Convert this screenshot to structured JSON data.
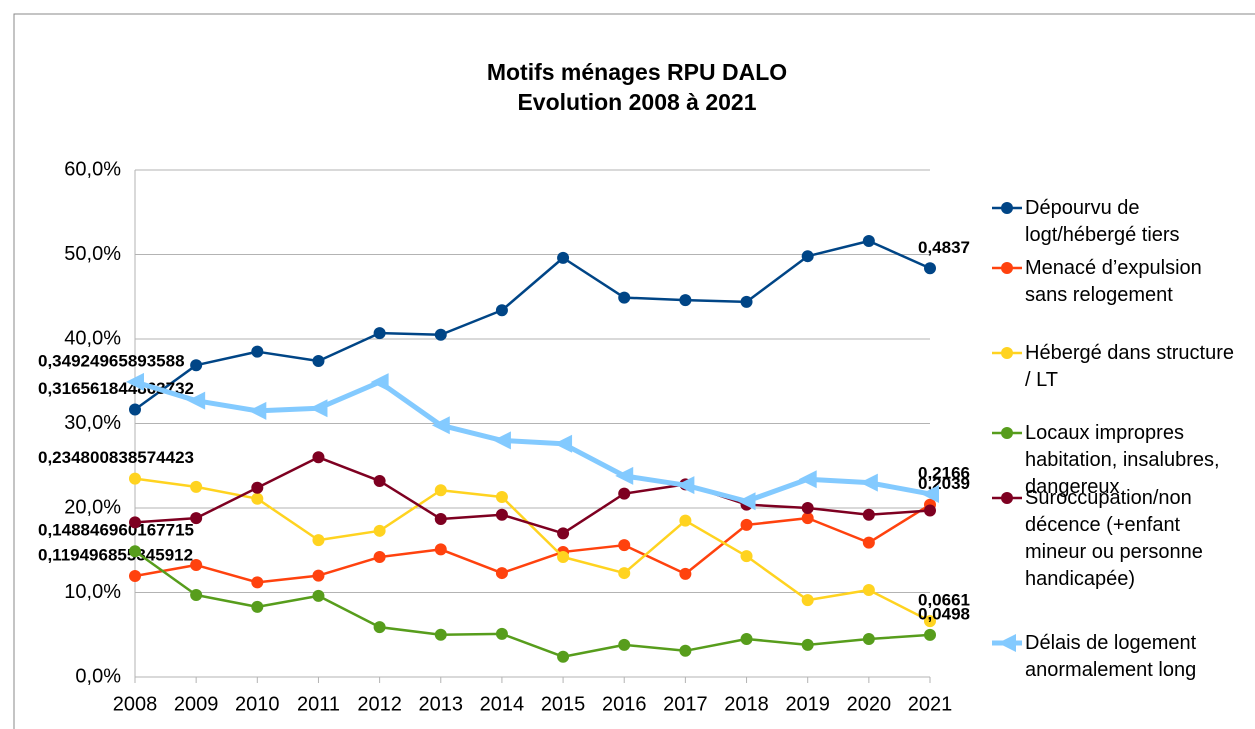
{
  "chart_data": {
    "type": "line",
    "title": "Motifs ménages RPU DALO",
    "subtitle": "Evolution 2008 à 2021",
    "categories": [
      "2008",
      "2009",
      "2010",
      "2011",
      "2012",
      "2013",
      "2014",
      "2015",
      "2016",
      "2017",
      "2018",
      "2019",
      "2020",
      "2021"
    ],
    "ylim": [
      0,
      0.6
    ],
    "yticks": [
      {
        "value": 0,
        "label": "0,0%"
      },
      {
        "value": 0.1,
        "label": "10,0%"
      },
      {
        "value": 0.2,
        "label": "20,0%"
      },
      {
        "value": 0.3,
        "label": "30,0%"
      },
      {
        "value": 0.4,
        "label": "40,0%"
      },
      {
        "value": 0.5,
        "label": "50,0%"
      },
      {
        "value": 0.6,
        "label": "60,0%"
      }
    ],
    "grid": true,
    "legend": "right",
    "series": [
      {
        "name": "Dépourvu de logt/hébergé tiers",
        "color": "#004586",
        "marker": "circle",
        "line_width": 2.5,
        "values": [
          0.316561844863732,
          0.369,
          0.385,
          0.374,
          0.407,
          0.405,
          0.434,
          0.496,
          0.449,
          0.446,
          0.444,
          0.498,
          0.516,
          0.4837
        ],
        "value_labels": [
          "0,316561844863732",
          null,
          null,
          null,
          null,
          null,
          null,
          null,
          null,
          null,
          null,
          null,
          null,
          "0,4837"
        ]
      },
      {
        "name": "Menacé d’expulsion sans relogement",
        "color": "#ff420e",
        "marker": "circle",
        "line_width": 2.5,
        "values": [
          0.119496855345912,
          0.1325,
          0.112,
          0.12,
          0.142,
          0.151,
          0.123,
          0.148,
          0.156,
          0.122,
          0.18,
          0.188,
          0.159,
          0.2039
        ],
        "value_labels": [
          "0,119496855345912",
          null,
          null,
          null,
          null,
          null,
          null,
          null,
          null,
          null,
          null,
          null,
          null,
          "0,2039"
        ]
      },
      {
        "name": "Hébergé dans structure / LT",
        "color": "#ffd320",
        "marker": "circle",
        "line_width": 2.5,
        "values": [
          0.234800838574423,
          0.225,
          0.211,
          0.162,
          0.173,
          0.221,
          0.213,
          0.142,
          0.123,
          0.185,
          0.143,
          0.091,
          0.103,
          0.0661
        ],
        "value_labels": [
          "0,234800838574423",
          null,
          null,
          null,
          null,
          null,
          null,
          null,
          null,
          null,
          null,
          null,
          null,
          "0,0661"
        ]
      },
      {
        "name": "Locaux impropres habitation, insalubres, dangereux",
        "color": "#579d1c",
        "marker": "circle",
        "line_width": 2.5,
        "values": [
          0.148846960167715,
          0.097,
          0.083,
          0.096,
          0.059,
          0.05,
          0.051,
          0.024,
          0.038,
          0.031,
          0.045,
          0.038,
          0.045,
          0.0498
        ],
        "value_labels": [
          "0,148846960167715",
          null,
          null,
          null,
          null,
          null,
          null,
          null,
          null,
          null,
          null,
          null,
          null,
          "0,0498"
        ]
      },
      {
        "name": "Suroccupation/non décence (+enfant mineur ou personne handicapée)",
        "color": "#7e0021",
        "marker": "circle",
        "line_width": 2.5,
        "values": [
          0.183,
          0.188,
          0.224,
          0.26,
          0.232,
          0.187,
          0.192,
          0.17,
          0.217,
          0.228,
          0.204,
          0.2,
          0.192,
          0.197
        ]
      },
      {
        "name": "Délais de logement anormalement long",
        "color": "#83caff",
        "marker": "triangle",
        "line_width": 5,
        "values": [
          0.34924965893588,
          0.327,
          0.315,
          0.318,
          0.349,
          0.298,
          0.28,
          0.276,
          0.238,
          0.227,
          0.208,
          0.234,
          0.23,
          0.2166
        ],
        "value_labels": [
          "0,34924965893588",
          null,
          null,
          null,
          null,
          null,
          null,
          null,
          null,
          null,
          null,
          null,
          null,
          "0,2166"
        ]
      }
    ]
  }
}
